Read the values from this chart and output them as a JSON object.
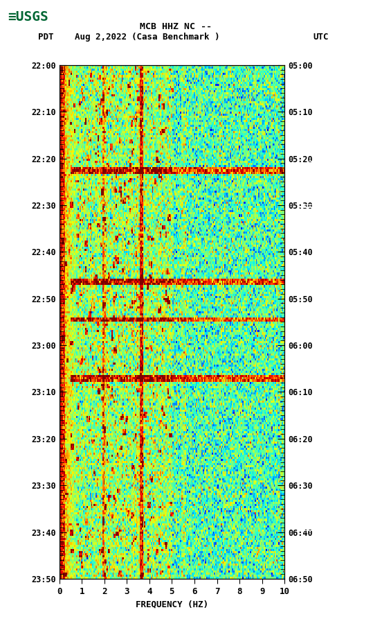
{
  "title_line1": "MCB HHZ NC --",
  "title_line2": "(Casa Benchmark )",
  "date_label": "Aug 2,2022",
  "left_time_label": "PDT",
  "right_time_label": "UTC",
  "ytick_left": [
    "22:00",
    "22:10",
    "22:20",
    "22:30",
    "22:40",
    "22:50",
    "23:00",
    "23:10",
    "23:20",
    "23:30",
    "23:40",
    "23:50"
  ],
  "ytick_right": [
    "05:00",
    "05:10",
    "05:20",
    "05:30",
    "05:40",
    "05:50",
    "06:00",
    "06:10",
    "06:20",
    "06:30",
    "06:40",
    "06:50"
  ],
  "xlabel": "FREQUENCY (HZ)",
  "xticks": [
    0,
    1,
    2,
    3,
    4,
    5,
    6,
    7,
    8,
    9,
    10
  ],
  "freq_min": 0,
  "freq_max": 10,
  "time_steps": 240,
  "freq_bins": 200,
  "background_color": "#ffffff",
  "usgs_logo_color": "#006633",
  "seed": 42
}
